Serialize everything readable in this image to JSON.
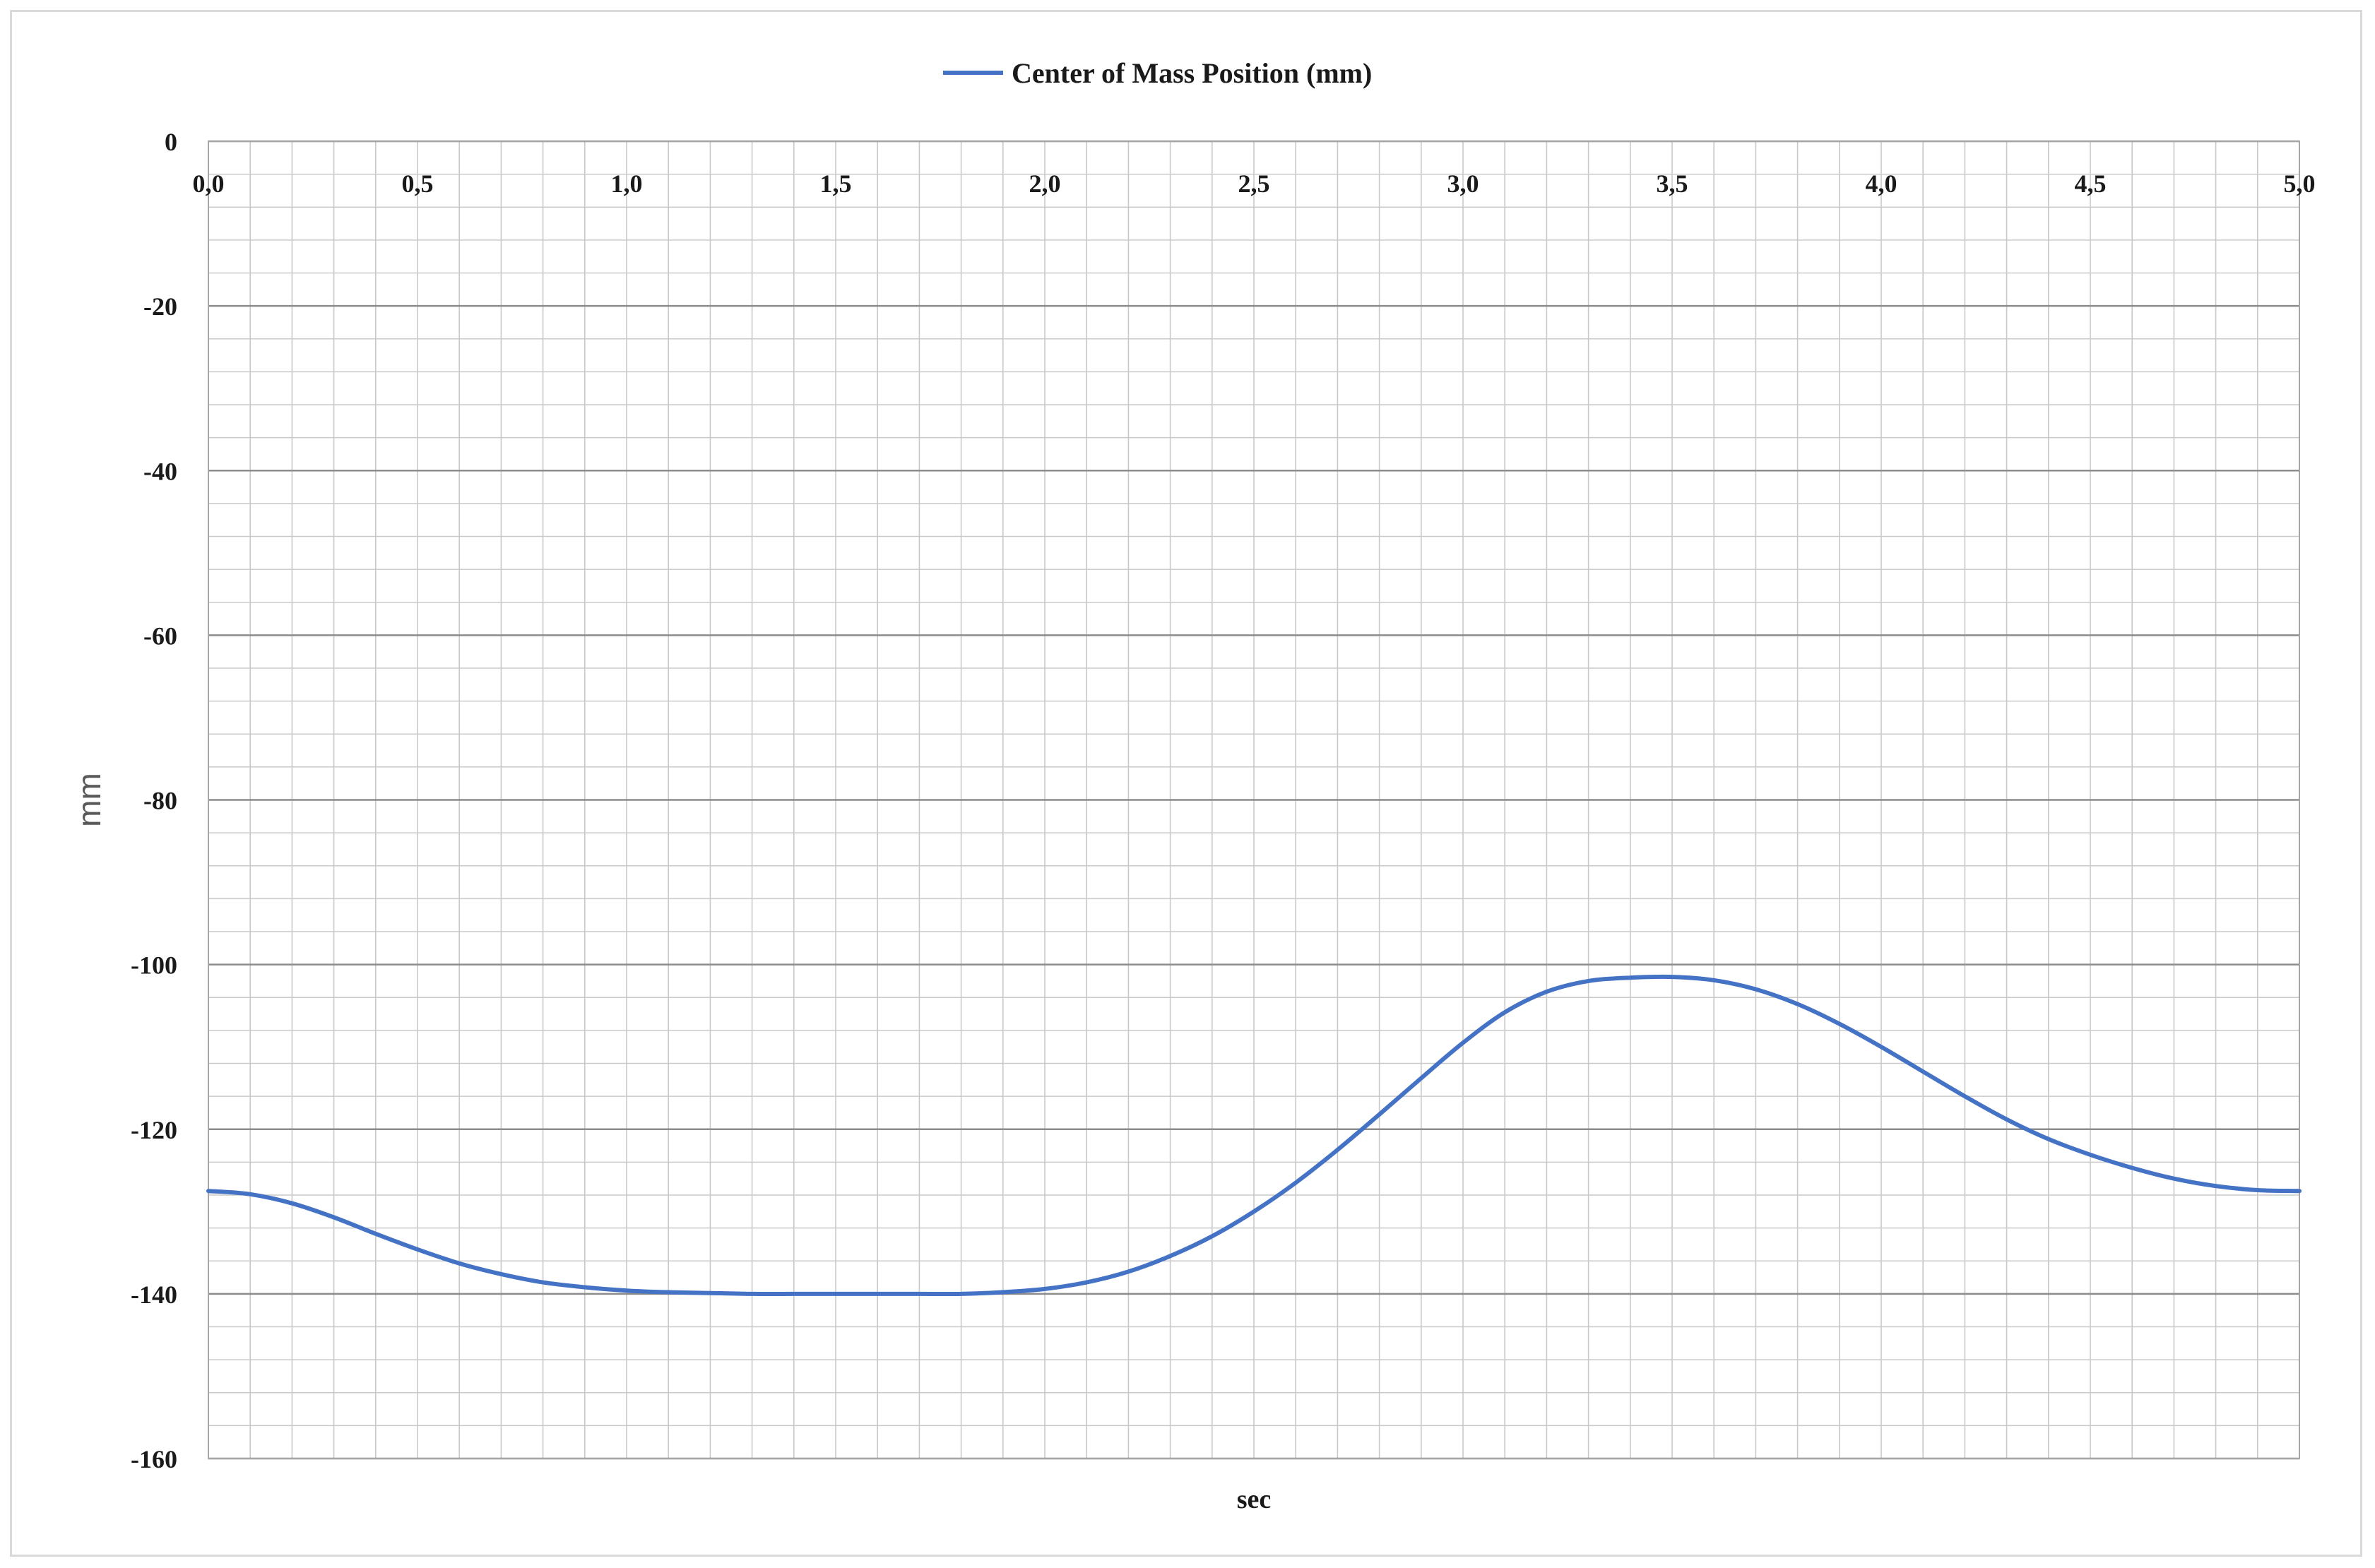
{
  "chart_data": {
    "type": "line",
    "xlabel": "sec",
    "ylabel": "mm",
    "xlim": [
      0,
      5
    ],
    "ylim": [
      -160,
      0
    ],
    "x_ticks": [
      "0,0",
      "0,5",
      "1,0",
      "1,5",
      "2,0",
      "2,5",
      "3,0",
      "3,5",
      "4,0",
      "4,5",
      "5,0"
    ],
    "y_ticks": [
      "0",
      "-20",
      "-40",
      "-60",
      "-80",
      "-100",
      "-120",
      "-140",
      "-160"
    ],
    "x_tick_values": [
      0,
      0.5,
      1,
      1.5,
      2,
      2.5,
      3,
      3.5,
      4,
      4.5,
      5
    ],
    "y_tick_values": [
      0,
      -20,
      -40,
      -60,
      -80,
      -100,
      -120,
      -140,
      -160
    ],
    "grid": true,
    "legend": "top-center",
    "series": [
      {
        "name": "Center of Mass Position (mm)",
        "color": "#4472C4",
        "x": [
          0,
          0.1,
          0.2,
          0.3,
          0.4,
          0.5,
          0.6,
          0.7,
          0.8,
          0.9,
          1.0,
          1.1,
          1.2,
          1.3,
          1.4,
          1.5,
          1.6,
          1.7,
          1.8,
          1.9,
          2.0,
          2.1,
          2.2,
          2.3,
          2.4,
          2.5,
          2.6,
          2.7,
          2.8,
          2.9,
          3.0,
          3.1,
          3.2,
          3.3,
          3.4,
          3.5,
          3.6,
          3.7,
          3.8,
          3.9,
          4.0,
          4.1,
          4.2,
          4.3,
          4.4,
          4.5,
          4.6,
          4.7,
          4.8,
          4.9,
          5.0
        ],
        "y": [
          -127.5,
          -127.9,
          -129.0,
          -130.7,
          -132.7,
          -134.6,
          -136.3,
          -137.6,
          -138.6,
          -139.2,
          -139.6,
          -139.8,
          -139.9,
          -140.0,
          -140.0,
          -140.0,
          -140.0,
          -140.0,
          -140.0,
          -139.8,
          -139.4,
          -138.6,
          -137.3,
          -135.4,
          -133.0,
          -130.0,
          -126.5,
          -122.5,
          -118.2,
          -113.8,
          -109.5,
          -105.8,
          -103.3,
          -102.0,
          -101.6,
          -101.5,
          -101.9,
          -103.0,
          -104.8,
          -107.2,
          -110.0,
          -113.0,
          -116.0,
          -118.8,
          -121.2,
          -123.1,
          -124.7,
          -126.0,
          -126.9,
          -127.4,
          -127.5
        ]
      }
    ]
  }
}
